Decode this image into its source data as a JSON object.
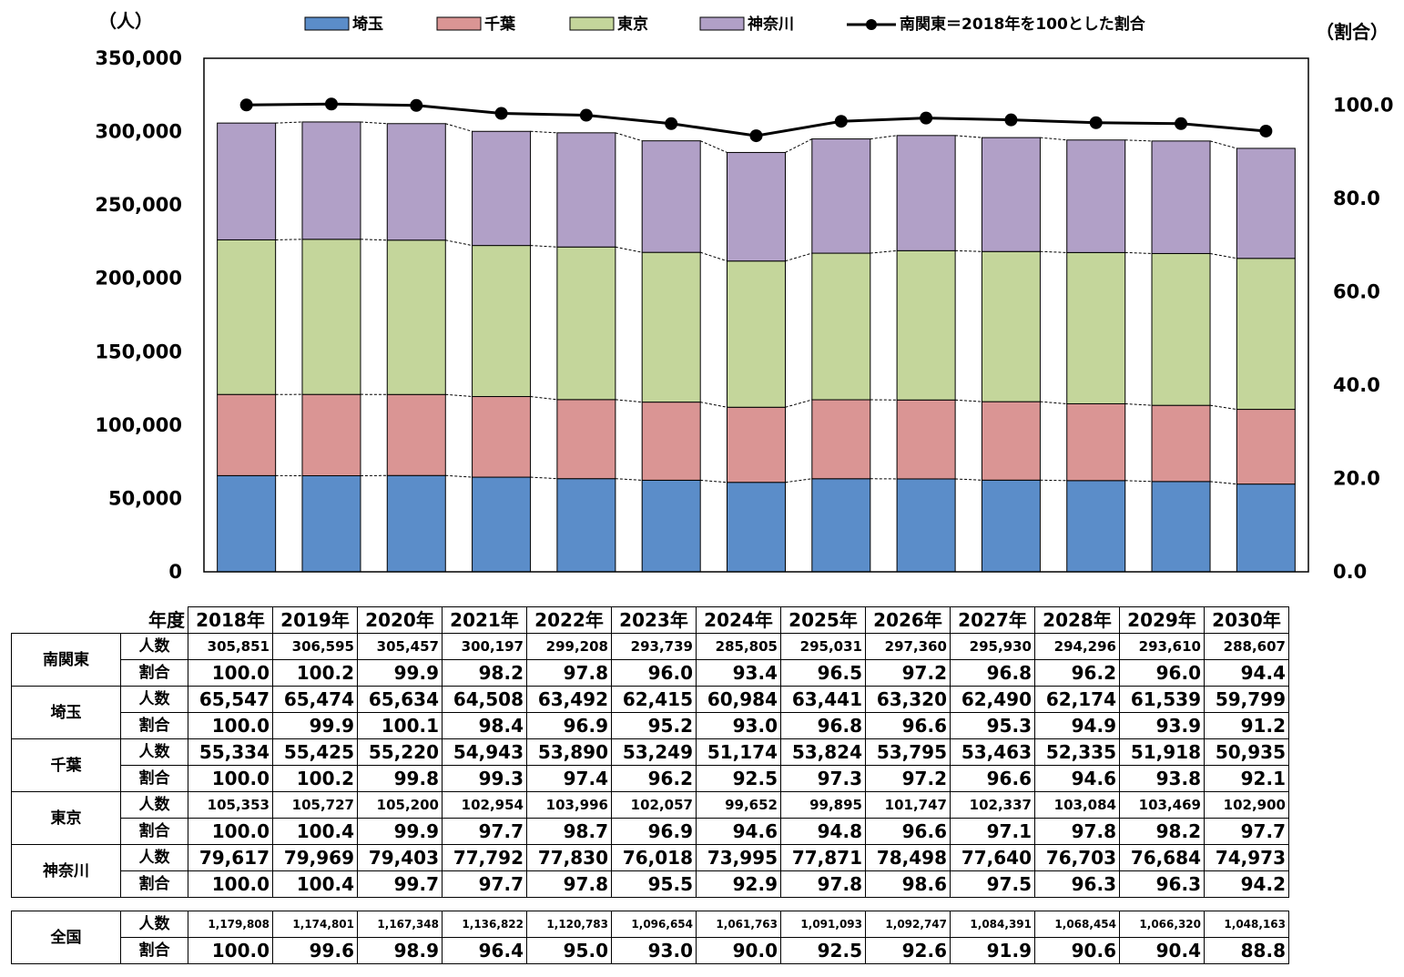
{
  "chart_data": {
    "type": "bar",
    "stacked": true,
    "left_axis_unit": "（人）",
    "right_axis_unit": "（割合）",
    "left_ticks": [
      "0",
      "50,000",
      "100,000",
      "150,000",
      "200,000",
      "250,000",
      "300,000",
      "350,000"
    ],
    "right_ticks": [
      "0.0",
      "20.0",
      "40.0",
      "60.0",
      "80.0",
      "100.0"
    ],
    "ylim": [
      0,
      350000
    ],
    "y2lim": [
      0,
      110
    ],
    "category_header": "年度",
    "categories": [
      "2018年",
      "2019年",
      "2020年",
      "2021年",
      "2022年",
      "2023年",
      "2024年",
      "2025年",
      "2026年",
      "2027年",
      "2028年",
      "2029年",
      "2030年"
    ],
    "series": [
      {
        "name": "埼玉",
        "color": "#5b8dc9",
        "values": [
          65547,
          65474,
          65634,
          64508,
          63492,
          62415,
          60984,
          63441,
          63320,
          62490,
          62174,
          61539,
          59799
        ]
      },
      {
        "name": "千葉",
        "color": "#da9594",
        "values": [
          55334,
          55425,
          55220,
          54943,
          53890,
          53249,
          51174,
          53824,
          53795,
          53463,
          52335,
          51918,
          50935
        ]
      },
      {
        "name": "東京",
        "color": "#c4d69b",
        "values": [
          105353,
          105727,
          105200,
          102954,
          103996,
          102057,
          99652,
          99895,
          101747,
          102337,
          103084,
          103469,
          102900
        ]
      },
      {
        "name": "神奈川",
        "color": "#b1a0c7",
        "values": [
          79617,
          79969,
          79403,
          77792,
          77830,
          76018,
          73995,
          77871,
          78498,
          77640,
          76703,
          76684,
          74973
        ]
      }
    ],
    "line": {
      "name": "南関東＝2018年を100とした割合",
      "color": "#000000",
      "values": [
        100.0,
        100.2,
        99.9,
        98.2,
        97.8,
        96.0,
        93.4,
        96.5,
        97.2,
        96.8,
        96.2,
        96.0,
        94.4
      ]
    },
    "legend_position": "top"
  },
  "table": {
    "metric_labels": {
      "count": "人数",
      "ratio": "割合"
    },
    "rows": [
      {
        "region": "南関東",
        "count_size": "small",
        "counts": [
          "305,851",
          "306,595",
          "305,457",
          "300,197",
          "299,208",
          "293,739",
          "285,805",
          "295,031",
          "297,360",
          "295,930",
          "294,296",
          "293,610",
          "288,607"
        ],
        "ratios": [
          "100.0",
          "100.2",
          "99.9",
          "98.2",
          "97.8",
          "96.0",
          "93.4",
          "96.5",
          "97.2",
          "96.8",
          "96.2",
          "96.0",
          "94.4"
        ]
      },
      {
        "region": "埼玉",
        "count_size": "",
        "counts": [
          "65,547",
          "65,474",
          "65,634",
          "64,508",
          "63,492",
          "62,415",
          "60,984",
          "63,441",
          "63,320",
          "62,490",
          "62,174",
          "61,539",
          "59,799"
        ],
        "ratios": [
          "100.0",
          "99.9",
          "100.1",
          "98.4",
          "96.9",
          "95.2",
          "93.0",
          "96.8",
          "96.6",
          "95.3",
          "94.9",
          "93.9",
          "91.2"
        ]
      },
      {
        "region": "千葉",
        "count_size": "",
        "counts": [
          "55,334",
          "55,425",
          "55,220",
          "54,943",
          "53,890",
          "53,249",
          "51,174",
          "53,824",
          "53,795",
          "53,463",
          "52,335",
          "51,918",
          "50,935"
        ],
        "ratios": [
          "100.0",
          "100.2",
          "99.8",
          "99.3",
          "97.4",
          "96.2",
          "92.5",
          "97.3",
          "97.2",
          "96.6",
          "94.6",
          "93.8",
          "92.1"
        ]
      },
      {
        "region": "東京",
        "count_size": "small",
        "counts": [
          "105,353",
          "105,727",
          "105,200",
          "102,954",
          "103,996",
          "102,057",
          "99,652",
          "99,895",
          "101,747",
          "102,337",
          "103,084",
          "103,469",
          "102,900"
        ],
        "ratios": [
          "100.0",
          "100.4",
          "99.9",
          "97.7",
          "98.7",
          "96.9",
          "94.6",
          "94.8",
          "96.6",
          "97.1",
          "97.8",
          "98.2",
          "97.7"
        ]
      },
      {
        "region": "神奈川",
        "count_size": "",
        "counts": [
          "79,617",
          "79,969",
          "79,403",
          "77,792",
          "77,830",
          "76,018",
          "73,995",
          "77,871",
          "78,498",
          "77,640",
          "76,703",
          "76,684",
          "74,973"
        ],
        "ratios": [
          "100.0",
          "100.4",
          "99.7",
          "97.7",
          "97.8",
          "95.5",
          "92.9",
          "97.8",
          "98.6",
          "97.5",
          "96.3",
          "96.3",
          "94.2"
        ]
      }
    ],
    "national": {
      "region": "全国",
      "count_size": "tiny",
      "counts": [
        "1,179,808",
        "1,174,801",
        "1,167,348",
        "1,136,822",
        "1,120,783",
        "1,096,654",
        "1,061,763",
        "1,091,093",
        "1,092,747",
        "1,084,391",
        "1,068,454",
        "1,066,320",
        "1,048,163"
      ],
      "ratios": [
        "100.0",
        "99.6",
        "98.9",
        "96.4",
        "95.0",
        "93.0",
        "90.0",
        "92.5",
        "92.6",
        "91.9",
        "90.6",
        "90.4",
        "88.8"
      ]
    }
  }
}
